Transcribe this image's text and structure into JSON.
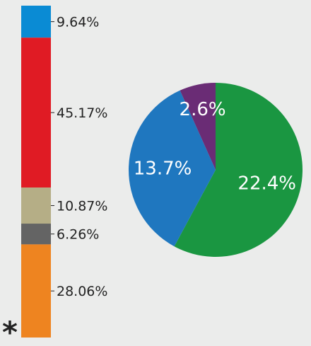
{
  "chart_data": [
    {
      "type": "bar",
      "orientation": "vertical-stacked",
      "segments": [
        {
          "label": "9.64%",
          "value": 9.64,
          "color": "#0a8bd4"
        },
        {
          "label": "45.17%",
          "value": 45.17,
          "color": "#e01b24"
        },
        {
          "label": "10.87%",
          "value": 10.87,
          "color": "#b5ae86"
        },
        {
          "label": "6.26%",
          "value": 6.26,
          "color": "#646464"
        },
        {
          "label": "28.06%",
          "value": 28.06,
          "color": "#ee8420"
        }
      ],
      "marker": "*"
    },
    {
      "type": "pie",
      "slices": [
        {
          "label": "22.4%",
          "value": 22.4,
          "color": "#1a9641"
        },
        {
          "label": "13.7%",
          "value": 13.7,
          "color": "#1f77bf"
        },
        {
          "label": "2.6%",
          "value": 2.6,
          "color": "#6a2c75"
        }
      ]
    }
  ]
}
